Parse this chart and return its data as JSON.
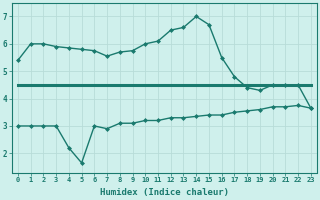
{
  "line1_x": [
    0,
    1,
    2,
    3,
    4,
    5,
    6,
    7,
    8,
    9,
    10,
    11,
    12,
    13,
    14,
    15,
    16,
    17,
    18,
    19,
    20,
    21,
    22,
    23
  ],
  "line1_y": [
    5.4,
    6.0,
    6.0,
    5.9,
    5.85,
    5.8,
    5.75,
    5.55,
    5.7,
    5.75,
    6.0,
    6.1,
    6.5,
    6.6,
    7.0,
    6.7,
    5.5,
    4.8,
    4.4,
    4.3,
    4.5,
    4.5,
    4.5,
    3.65
  ],
  "line2_x": [
    0,
    1,
    2,
    3,
    4,
    5,
    6,
    7,
    8,
    9,
    10,
    11,
    12,
    13,
    14,
    15,
    16,
    17,
    18,
    19,
    20,
    21,
    22,
    23
  ],
  "line2_y": [
    4.5,
    4.5,
    4.5,
    4.5,
    4.5,
    4.5,
    4.5,
    4.5,
    4.5,
    4.5,
    4.5,
    4.5,
    4.5,
    4.5,
    4.5,
    4.5,
    4.5,
    4.5,
    4.5,
    4.5,
    4.5,
    4.5,
    4.5,
    4.5
  ],
  "line3_x": [
    0,
    1,
    2,
    3,
    4,
    5,
    6,
    7,
    8,
    9,
    10,
    11,
    12,
    13,
    14,
    15,
    16,
    17,
    18,
    19,
    20,
    21,
    22,
    23
  ],
  "line3_y": [
    3.0,
    3.0,
    3.0,
    3.0,
    2.2,
    1.65,
    3.0,
    2.9,
    3.1,
    3.1,
    3.2,
    3.2,
    3.3,
    3.3,
    3.35,
    3.4,
    3.4,
    3.5,
    3.55,
    3.6,
    3.7,
    3.7,
    3.75,
    3.65
  ],
  "line_color": "#1a7a6e",
  "bg_color": "#cff0ec",
  "grid_color": "#b8dcd8",
  "xlabel": "Humidex (Indice chaleur)",
  "ylim": [
    1.3,
    7.5
  ],
  "xlim": [
    -0.5,
    23.5
  ],
  "yticks": [
    2,
    3,
    4,
    5,
    6,
    7
  ],
  "xticks": [
    0,
    1,
    2,
    3,
    4,
    5,
    6,
    7,
    8,
    9,
    10,
    11,
    12,
    13,
    14,
    15,
    16,
    17,
    18,
    19,
    20,
    21,
    22,
    23
  ],
  "xtick_labels": [
    "0",
    "1",
    "2",
    "3",
    "4",
    "5",
    "6",
    "7",
    "8",
    "9",
    "10",
    "11",
    "12",
    "13",
    "14",
    "15",
    "16",
    "17",
    "18",
    "19",
    "20",
    "21",
    "22",
    "23"
  ],
  "marker": "D",
  "markersize": 2.0,
  "linewidth": 1.0,
  "linewidth2": 2.2,
  "tick_fontsize": 5.0,
  "label_fontsize": 6.5
}
